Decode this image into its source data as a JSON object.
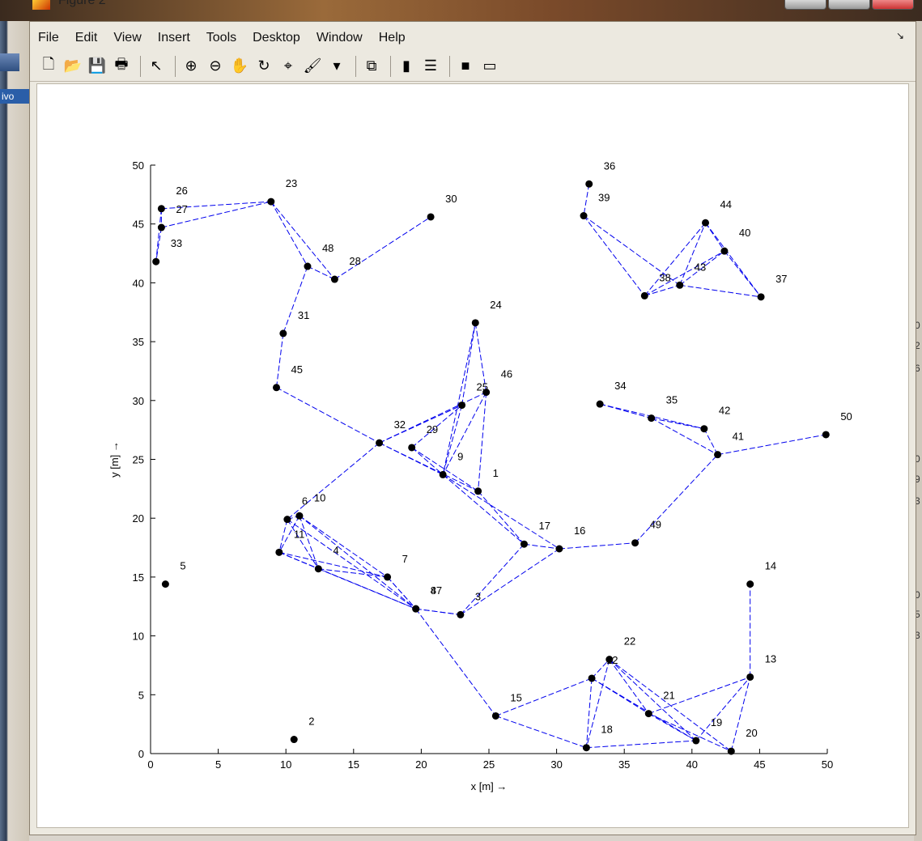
{
  "window": {
    "title": "Figure 2"
  },
  "menu": [
    "File",
    "Edit",
    "View",
    "Insert",
    "Tools",
    "Desktop",
    "Window",
    "Help"
  ],
  "toolbar": [
    {
      "name": "new-figure-icon",
      "glyph": "🗋"
    },
    {
      "name": "open-file-icon",
      "glyph": "📂"
    },
    {
      "name": "save-icon",
      "glyph": "💾"
    },
    {
      "name": "print-icon",
      "glyph": "🖶"
    },
    {
      "sep": true
    },
    {
      "name": "edit-plot-arrow-icon",
      "glyph": "↖"
    },
    {
      "sep": true
    },
    {
      "name": "zoom-in-icon",
      "glyph": "⊕"
    },
    {
      "name": "zoom-out-icon",
      "glyph": "⊖"
    },
    {
      "name": "pan-hand-icon",
      "glyph": "✋"
    },
    {
      "name": "rotate-3d-icon",
      "glyph": "↻"
    },
    {
      "name": "data-cursor-icon",
      "glyph": "⌖"
    },
    {
      "name": "brush-icon",
      "glyph": "🖌"
    },
    {
      "name": "brush-dropdown-icon",
      "glyph": "▾"
    },
    {
      "sep": true
    },
    {
      "name": "link-plot-icon",
      "glyph": "⧉"
    },
    {
      "sep": true
    },
    {
      "name": "colorbar-icon",
      "glyph": "▮"
    },
    {
      "name": "legend-icon",
      "glyph": "☰"
    },
    {
      "sep": true
    },
    {
      "name": "hide-plot-tools-icon",
      "glyph": "■"
    },
    {
      "name": "show-plot-tools-icon",
      "glyph": "▭"
    }
  ],
  "left_strip": {
    "tab_label": "ivo"
  },
  "right_strip": {
    "texts": [
      "0",
      "2",
      "6",
      "0",
      "9",
      "3",
      "0",
      "5",
      "3"
    ]
  },
  "colors": {
    "edge": "#0000ee",
    "node": "#000000"
  },
  "chart_data": {
    "type": "scatter",
    "xlabel": "x  [m] →",
    "ylabel": "y  [m] →",
    "xlim": [
      0,
      50
    ],
    "ylim": [
      0,
      50
    ],
    "xticks": [
      0,
      5,
      10,
      15,
      20,
      25,
      30,
      35,
      40,
      45,
      50
    ],
    "yticks": [
      0,
      5,
      10,
      15,
      20,
      25,
      30,
      35,
      40,
      45,
      50
    ],
    "nodes": [
      {
        "id": "1",
        "x": 24.2,
        "y": 22.3
      },
      {
        "id": "2",
        "x": 10.6,
        "y": 1.2
      },
      {
        "id": "3",
        "x": 22.9,
        "y": 11.8
      },
      {
        "id": "4",
        "x": 12.4,
        "y": 15.7
      },
      {
        "id": "5",
        "x": 1.1,
        "y": 14.4
      },
      {
        "id": "6",
        "x": 10.1,
        "y": 19.9
      },
      {
        "id": "7",
        "x": 17.5,
        "y": 15.0
      },
      {
        "id": "8",
        "x": 19.6,
        "y": 12.3
      },
      {
        "id": "9",
        "x": 21.6,
        "y": 23.7
      },
      {
        "id": "10",
        "x": 11.0,
        "y": 20.2
      },
      {
        "id": "11",
        "x": 9.5,
        "y": 17.1
      },
      {
        "id": "12",
        "x": 32.6,
        "y": 6.4
      },
      {
        "id": "13",
        "x": 44.3,
        "y": 6.5
      },
      {
        "id": "14",
        "x": 44.3,
        "y": 14.4
      },
      {
        "id": "15",
        "x": 25.5,
        "y": 3.2
      },
      {
        "id": "16",
        "x": 30.2,
        "y": 17.4
      },
      {
        "id": "17",
        "x": 27.6,
        "y": 17.8
      },
      {
        "id": "18",
        "x": 32.2,
        "y": 0.5
      },
      {
        "id": "19",
        "x": 40.3,
        "y": 1.1
      },
      {
        "id": "20",
        "x": 42.9,
        "y": 0.2
      },
      {
        "id": "21",
        "x": 36.8,
        "y": 3.4
      },
      {
        "id": "22",
        "x": 33.9,
        "y": 8.0
      },
      {
        "id": "23",
        "x": 8.9,
        "y": 46.9
      },
      {
        "id": "24",
        "x": 24.0,
        "y": 36.6
      },
      {
        "id": "25",
        "x": 23.0,
        "y": 29.6
      },
      {
        "id": "26",
        "x": 0.8,
        "y": 46.3
      },
      {
        "id": "27",
        "x": 0.8,
        "y": 44.7
      },
      {
        "id": "28",
        "x": 13.6,
        "y": 40.3
      },
      {
        "id": "29",
        "x": 19.3,
        "y": 26.0
      },
      {
        "id": "30",
        "x": 20.7,
        "y": 45.6
      },
      {
        "id": "31",
        "x": 9.8,
        "y": 35.7
      },
      {
        "id": "32",
        "x": 16.9,
        "y": 26.4
      },
      {
        "id": "33",
        "x": 0.4,
        "y": 41.8
      },
      {
        "id": "34",
        "x": 33.2,
        "y": 29.7
      },
      {
        "id": "35",
        "x": 37.0,
        "y": 28.5
      },
      {
        "id": "36",
        "x": 32.4,
        "y": 48.4
      },
      {
        "id": "37",
        "x": 45.1,
        "y": 38.8
      },
      {
        "id": "38",
        "x": 36.5,
        "y": 38.9
      },
      {
        "id": "39",
        "x": 32.0,
        "y": 45.7
      },
      {
        "id": "40",
        "x": 42.4,
        "y": 42.7
      },
      {
        "id": "41",
        "x": 41.9,
        "y": 25.4
      },
      {
        "id": "42",
        "x": 40.9,
        "y": 27.6
      },
      {
        "id": "43",
        "x": 39.1,
        "y": 39.8
      },
      {
        "id": "44",
        "x": 41.0,
        "y": 45.1
      },
      {
        "id": "45",
        "x": 9.3,
        "y": 31.1
      },
      {
        "id": "46",
        "x": 24.8,
        "y": 30.7
      },
      {
        "id": "47",
        "x": 19.6,
        "y": 12.3
      },
      {
        "id": "48",
        "x": 11.6,
        "y": 41.4
      },
      {
        "id": "49",
        "x": 35.8,
        "y": 17.9
      },
      {
        "id": "50",
        "x": 49.9,
        "y": 27.1
      }
    ],
    "edges": [
      [
        "26",
        "23"
      ],
      [
        "27",
        "23"
      ],
      [
        "26",
        "33"
      ],
      [
        "27",
        "33"
      ],
      [
        "26",
        "27"
      ],
      [
        "23",
        "48"
      ],
      [
        "23",
        "28"
      ],
      [
        "48",
        "28"
      ],
      [
        "28",
        "30"
      ],
      [
        "48",
        "31"
      ],
      [
        "31",
        "45"
      ],
      [
        "45",
        "32"
      ],
      [
        "32",
        "25"
      ],
      [
        "32",
        "46"
      ],
      [
        "32",
        "9"
      ],
      [
        "32",
        "1"
      ],
      [
        "32",
        "6"
      ],
      [
        "29",
        "25"
      ],
      [
        "29",
        "9"
      ],
      [
        "29",
        "1"
      ],
      [
        "25",
        "24"
      ],
      [
        "24",
        "46"
      ],
      [
        "24",
        "9"
      ],
      [
        "46",
        "9"
      ],
      [
        "46",
        "1"
      ],
      [
        "25",
        "9"
      ],
      [
        "9",
        "17"
      ],
      [
        "1",
        "17"
      ],
      [
        "9",
        "16"
      ],
      [
        "17",
        "16"
      ],
      [
        "16",
        "49"
      ],
      [
        "49",
        "41"
      ],
      [
        "41",
        "42"
      ],
      [
        "41",
        "50"
      ],
      [
        "34",
        "35"
      ],
      [
        "35",
        "42"
      ],
      [
        "34",
        "42"
      ],
      [
        "35",
        "41"
      ],
      [
        "6",
        "10"
      ],
      [
        "6",
        "11"
      ],
      [
        "10",
        "11"
      ],
      [
        "6",
        "4"
      ],
      [
        "10",
        "4"
      ],
      [
        "11",
        "4"
      ],
      [
        "11",
        "7"
      ],
      [
        "10",
        "7"
      ],
      [
        "6",
        "47"
      ],
      [
        "10",
        "8"
      ],
      [
        "4",
        "7"
      ],
      [
        "4",
        "8"
      ],
      [
        "11",
        "8"
      ],
      [
        "7",
        "47"
      ],
      [
        "7",
        "8"
      ],
      [
        "47",
        "8"
      ],
      [
        "47",
        "3"
      ],
      [
        "8",
        "3"
      ],
      [
        "3",
        "17"
      ],
      [
        "3",
        "16"
      ],
      [
        "8",
        "15"
      ],
      [
        "15",
        "12"
      ],
      [
        "15",
        "18"
      ],
      [
        "12",
        "22"
      ],
      [
        "12",
        "18"
      ],
      [
        "22",
        "18"
      ],
      [
        "12",
        "21"
      ],
      [
        "22",
        "21"
      ],
      [
        "22",
        "19"
      ],
      [
        "22",
        "20"
      ],
      [
        "12",
        "19"
      ],
      [
        "21",
        "13"
      ],
      [
        "21",
        "19"
      ],
      [
        "18",
        "19"
      ],
      [
        "19",
        "13"
      ],
      [
        "20",
        "13"
      ],
      [
        "21",
        "20"
      ],
      [
        "13",
        "14"
      ],
      [
        "36",
        "39"
      ],
      [
        "39",
        "38"
      ],
      [
        "39",
        "43"
      ],
      [
        "38",
        "44"
      ],
      [
        "38",
        "40"
      ],
      [
        "43",
        "44"
      ],
      [
        "43",
        "40"
      ],
      [
        "44",
        "40"
      ],
      [
        "44",
        "37"
      ],
      [
        "40",
        "37"
      ],
      [
        "43",
        "37"
      ],
      [
        "38",
        "43"
      ]
    ]
  }
}
